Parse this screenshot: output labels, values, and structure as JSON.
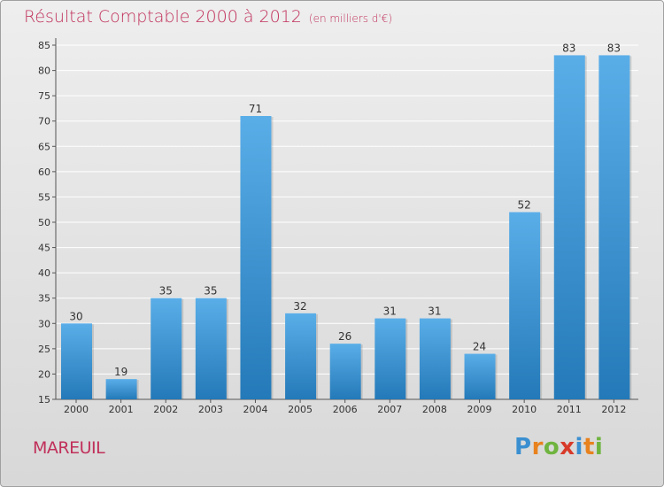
{
  "title": "Résultat Comptable 2000 à 2012",
  "subtitle": "(en milliers d'€)",
  "place": "MAREUIL",
  "logo": {
    "text": "Proxiti",
    "letters": [
      {
        "ch": "P",
        "color": "#3a8fd0"
      },
      {
        "ch": "r",
        "color": "#e8821e"
      },
      {
        "ch": "o",
        "color": "#6fb43f"
      },
      {
        "ch": "x",
        "color": "#d83a2a"
      },
      {
        "ch": "i",
        "color": "#3a8fd0"
      },
      {
        "ch": "t",
        "color": "#e8821e"
      },
      {
        "ch": "i",
        "color": "#6fb43f"
      }
    ]
  },
  "colors": {
    "bar_top": "#5aaee8",
    "bar_bottom": "#2479b8",
    "title": "#c0305a",
    "grid": "#ffffff",
    "axis": "#555555"
  },
  "chart_data": {
    "type": "bar",
    "title": "Résultat Comptable 2000 à 2012 (en milliers d'€)",
    "xlabel": "",
    "ylabel": "",
    "categories": [
      "2000",
      "2001",
      "2002",
      "2003",
      "2004",
      "2005",
      "2006",
      "2007",
      "2008",
      "2009",
      "2010",
      "2011",
      "2012"
    ],
    "values": [
      30,
      19,
      35,
      35,
      71,
      32,
      26,
      31,
      31,
      24,
      52,
      83,
      83
    ],
    "ylim": [
      15,
      85
    ],
    "yticks": [
      15,
      20,
      25,
      30,
      35,
      40,
      45,
      50,
      55,
      60,
      65,
      70,
      75,
      80,
      85
    ],
    "grid": true
  }
}
